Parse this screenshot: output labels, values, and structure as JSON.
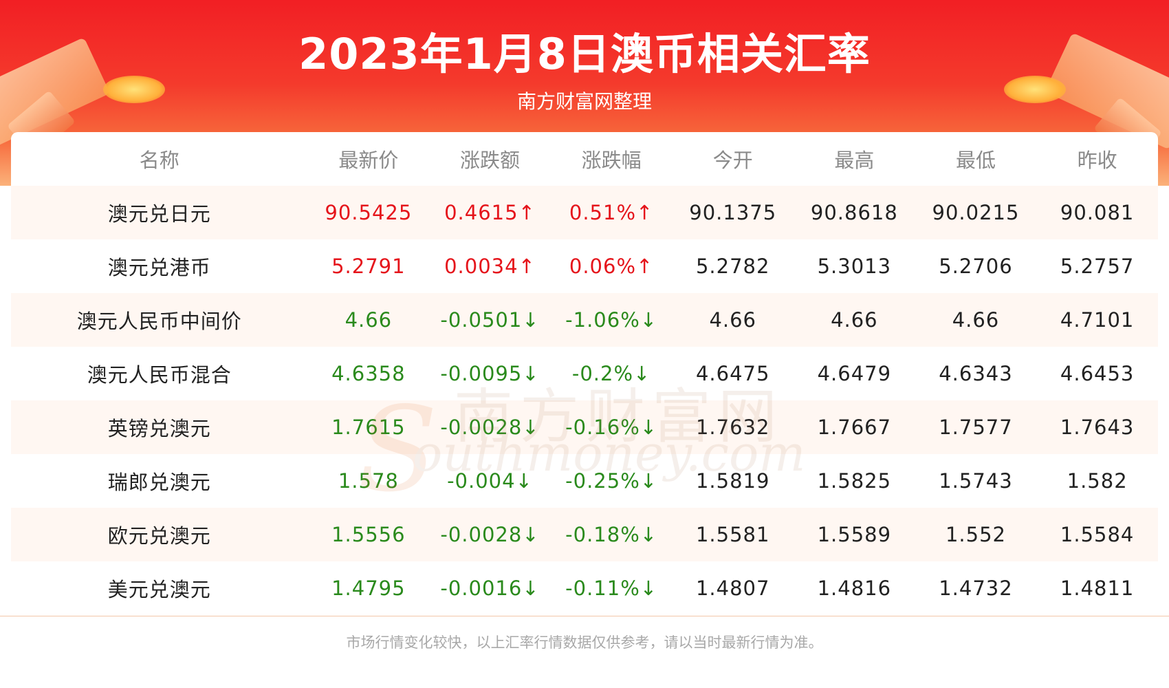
{
  "header": {
    "title": "2023年1月8日澳币相关汇率",
    "subtitle": "南方财富网整理"
  },
  "watermark": {
    "cn": "南方财富网",
    "en": "outhmoney.com",
    "s": "S"
  },
  "table": {
    "columns": [
      "名称",
      "最新价",
      "涨跌额",
      "涨跌幅",
      "今开",
      "最高",
      "最低",
      "昨收"
    ],
    "rows": [
      {
        "name": "澳元兑日元",
        "latest": "90.5425",
        "change": "0.4615↑",
        "pct": "0.51%↑",
        "open": "90.1375",
        "high": "90.8618",
        "low": "90.0215",
        "prev": "90.081",
        "trend": "up"
      },
      {
        "name": "澳元兑港币",
        "latest": "5.2791",
        "change": "0.0034↑",
        "pct": "0.06%↑",
        "open": "5.2782",
        "high": "5.3013",
        "low": "5.2706",
        "prev": "5.2757",
        "trend": "up"
      },
      {
        "name": "澳元人民币中间价",
        "latest": "4.66",
        "change": "-0.0501↓",
        "pct": "-1.06%↓",
        "open": "4.66",
        "high": "4.66",
        "low": "4.66",
        "prev": "4.7101",
        "trend": "down"
      },
      {
        "name": "澳元人民币混合",
        "latest": "4.6358",
        "change": "-0.0095↓",
        "pct": "-0.2%↓",
        "open": "4.6475",
        "high": "4.6479",
        "low": "4.6343",
        "prev": "4.6453",
        "trend": "down"
      },
      {
        "name": "英镑兑澳元",
        "latest": "1.7615",
        "change": "-0.0028↓",
        "pct": "-0.16%↓",
        "open": "1.7632",
        "high": "1.7667",
        "low": "1.7577",
        "prev": "1.7643",
        "trend": "down"
      },
      {
        "name": "瑞郎兑澳元",
        "latest": "1.578",
        "change": "-0.004↓",
        "pct": "-0.25%↓",
        "open": "1.5819",
        "high": "1.5825",
        "low": "1.5743",
        "prev": "1.582",
        "trend": "down"
      },
      {
        "name": "欧元兑澳元",
        "latest": "1.5556",
        "change": "-0.0028↓",
        "pct": "-0.18%↓",
        "open": "1.5581",
        "high": "1.5589",
        "low": "1.552",
        "prev": "1.5584",
        "trend": "down"
      },
      {
        "name": "美元兑澳元",
        "latest": "1.4795",
        "change": "-0.0016↓",
        "pct": "-0.11%↓",
        "open": "1.4807",
        "high": "1.4816",
        "low": "1.4732",
        "prev": "1.4811",
        "trend": "down"
      }
    ]
  },
  "footer": {
    "note": "市场行情变化较快，以上汇率行情数据仅供参考，请以当时最新行情为准。"
  },
  "colors": {
    "up": "#e5141b",
    "down": "#2a8a1c",
    "banner": "#f21f24"
  }
}
